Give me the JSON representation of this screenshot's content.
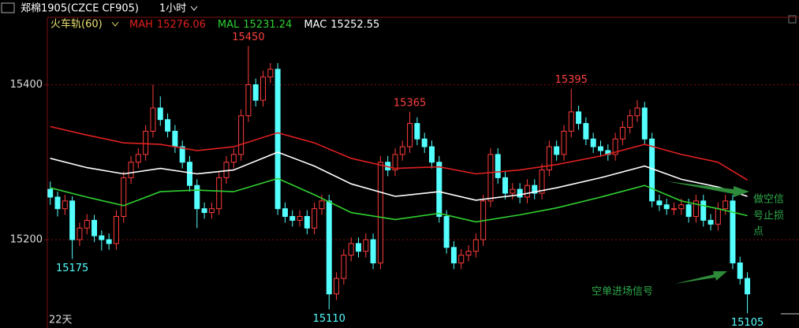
{
  "chart_data": {
    "type": "candlestick",
    "title": "郑棉1905(CZCE CF905)",
    "period": "1小时",
    "indicator": "火车轨(60)",
    "duration": "22天",
    "ylim": [
      15086,
      15487
    ],
    "yticks": [
      15200,
      15400
    ],
    "xlim": [
      -0.4,
      95.8
    ],
    "grid": true,
    "up_color": "#ff3c3c",
    "down_color": "#54ffff",
    "open": [
      15265,
      15255,
      15240,
      15250,
      15200,
      15215,
      15225,
      15205,
      15200,
      15195,
      15230,
      15280,
      15300,
      15310,
      15340,
      15370,
      15355,
      15340,
      15320,
      15300,
      15270,
      15240,
      15235,
      15240,
      15280,
      15300,
      15310,
      15360,
      15400,
      15380,
      15410,
      15420,
      15240,
      15230,
      15225,
      15230,
      15215,
      15240,
      15250,
      15130,
      15150,
      15180,
      15195,
      15185,
      15200,
      15170,
      15300,
      15290,
      15310,
      15320,
      15350,
      15330,
      15320,
      15300,
      15230,
      15190,
      15170,
      15180,
      15185,
      15200,
      15250,
      15310,
      15280,
      15260,
      15265,
      15255,
      15270,
      15260,
      15290,
      15320,
      15310,
      15340,
      15365,
      15350,
      15330,
      15320,
      15315,
      15310,
      15330,
      15345,
      15360,
      15370,
      15330,
      15250,
      15245,
      15240,
      15240,
      15245,
      15230,
      15250,
      15225,
      15220,
      15240,
      15250,
      15170,
      15150
    ],
    "high": [
      15275,
      15262,
      15258,
      15256,
      15222,
      15233,
      15232,
      15212,
      15208,
      15238,
      15288,
      15308,
      15318,
      15348,
      15400,
      15385,
      15363,
      15348,
      15328,
      15308,
      15278,
      15248,
      15248,
      15288,
      15308,
      15318,
      15368,
      15450,
      15408,
      15418,
      15428,
      15428,
      15248,
      15238,
      15238,
      15238,
      15248,
      15258,
      15258,
      15158,
      15188,
      15203,
      15203,
      15208,
      15208,
      15308,
      15308,
      15318,
      15328,
      15365,
      15358,
      15338,
      15328,
      15308,
      15238,
      15198,
      15188,
      15193,
      15208,
      15258,
      15318,
      15318,
      15288,
      15273,
      15273,
      15278,
      15278,
      15298,
      15328,
      15328,
      15348,
      15395,
      15373,
      15358,
      15338,
      15328,
      15323,
      15338,
      15353,
      15368,
      15380,
      15378,
      15338,
      15258,
      15253,
      15248,
      15253,
      15253,
      15258,
      15258,
      15233,
      15248,
      15258,
      15258,
      15178,
      15158
    ],
    "low": [
      15245,
      15230,
      15232,
      15175,
      15192,
      15207,
      15197,
      15186,
      15187,
      15187,
      15222,
      15272,
      15292,
      15302,
      15332,
      15347,
      15332,
      15312,
      15292,
      15262,
      15215,
      15227,
      15227,
      15232,
      15272,
      15292,
      15302,
      15352,
      15372,
      15372,
      15402,
      15232,
      15222,
      15217,
      15217,
      15207,
      15207,
      15232,
      15110,
      15122,
      15142,
      15172,
      15177,
      15177,
      15162,
      15162,
      15282,
      15282,
      15302,
      15312,
      15322,
      15312,
      15292,
      15222,
      15182,
      15162,
      15162,
      15172,
      15177,
      15192,
      15242,
      15272,
      15252,
      15252,
      15247,
      15247,
      15252,
      15252,
      15282,
      15302,
      15302,
      15332,
      15342,
      15322,
      15312,
      15307,
      15302,
      15302,
      15322,
      15337,
      15352,
      15322,
      15242,
      15237,
      15232,
      15232,
      15232,
      15222,
      15222,
      15217,
      15212,
      15212,
      15232,
      15162,
      15142,
      15105
    ],
    "close": [
      15255,
      15240,
      15250,
      15200,
      15215,
      15225,
      15205,
      15200,
      15195,
      15230,
      15280,
      15300,
      15310,
      15340,
      15370,
      15355,
      15340,
      15320,
      15300,
      15270,
      15240,
      15235,
      15240,
      15280,
      15300,
      15310,
      15360,
      15400,
      15380,
      15410,
      15420,
      15240,
      15230,
      15225,
      15230,
      15215,
      15240,
      15250,
      15130,
      15150,
      15180,
      15195,
      15185,
      15200,
      15170,
      15300,
      15290,
      15310,
      15320,
      15350,
      15330,
      15320,
      15300,
      15230,
      15190,
      15170,
      15180,
      15185,
      15200,
      15250,
      15310,
      15280,
      15260,
      15265,
      15255,
      15270,
      15260,
      15290,
      15320,
      15310,
      15340,
      15365,
      15350,
      15330,
      15320,
      15315,
      15310,
      15330,
      15345,
      15360,
      15370,
      15330,
      15250,
      15245,
      15240,
      15240,
      15245,
      15230,
      15250,
      15225,
      15220,
      15240,
      15250,
      15170,
      15150,
      15130
    ],
    "series": [
      {
        "name": "MAH",
        "legend_value": 15276.06,
        "color": "#e02020",
        "x": [
          0,
          5,
          10,
          15,
          20,
          25,
          31,
          36,
          41,
          47,
          53,
          58,
          64,
          69,
          75,
          81,
          86,
          91,
          95
        ],
        "values": [
          15346,
          15335,
          15325,
          15323,
          15315,
          15320,
          15338,
          15325,
          15305,
          15292,
          15294,
          15285,
          15290,
          15297,
          15308,
          15323,
          15310,
          15300,
          15277
        ]
      },
      {
        "name": "MAL",
        "legend_value": 15231.24,
        "color": "#30d030",
        "x": [
          0,
          5,
          10,
          15,
          20,
          25,
          31,
          36,
          41,
          47,
          53,
          58,
          64,
          69,
          75,
          81,
          86,
          91,
          95
        ],
        "values": [
          15267,
          15255,
          15244,
          15262,
          15264,
          15262,
          15279,
          15258,
          15235,
          15226,
          15234,
          15223,
          15232,
          15241,
          15255,
          15270,
          15250,
          15240,
          15231
        ]
      },
      {
        "name": "MAC",
        "legend_value": 15252.55,
        "color": "#ffffff",
        "x": [
          0,
          5,
          10,
          15,
          20,
          25,
          31,
          36,
          41,
          47,
          53,
          58,
          64,
          69,
          75,
          81,
          86,
          91,
          95
        ],
        "values": [
          15305,
          15293,
          15285,
          15292,
          15285,
          15290,
          15313,
          15295,
          15272,
          15256,
          15262,
          15251,
          15258,
          15267,
          15280,
          15295,
          15278,
          15268,
          15256
        ]
      }
    ],
    "extremes": [
      {
        "x": 27,
        "value": 15450,
        "kind": "high"
      },
      {
        "x": 49,
        "value": 15365,
        "kind": "high"
      },
      {
        "x": 71,
        "value": 15395,
        "kind": "high"
      },
      {
        "x": 3,
        "value": 15175,
        "kind": "low"
      },
      {
        "x": 38,
        "value": 15110,
        "kind": "low"
      },
      {
        "x": 95,
        "value": 15105,
        "kind": "low"
      }
    ],
    "annotations": {
      "stop_loss": [
        "做空信",
        "号止损",
        "点"
      ],
      "entry": "空单进场信号"
    }
  }
}
